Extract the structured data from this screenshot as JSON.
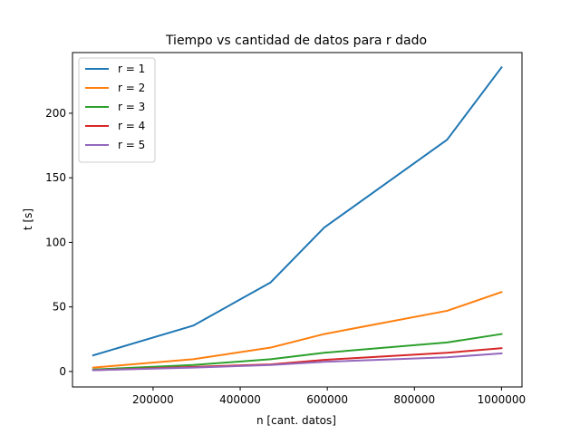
{
  "chart_data": {
    "type": "line",
    "title": "Tiempo vs cantidad de datos para r dado",
    "xlabel": "n [cant. datos]",
    "ylabel": "t [s]",
    "xlim": [
      15000,
      1047000
    ],
    "ylim": [
      -12,
      247
    ],
    "xticks": [
      200000,
      400000,
      600000,
      800000,
      1000000
    ],
    "xtick_labels": [
      "200000",
      "400000",
      "600000",
      "800000",
      "1000000"
    ],
    "yticks": [
      0,
      50,
      100,
      150,
      200
    ],
    "ytick_labels": [
      "0",
      "50",
      "100",
      "150",
      "200"
    ],
    "grid": false,
    "legend_position": "top-left",
    "x": [
      62500,
      292000,
      470000,
      593000,
      875000,
      1000000
    ],
    "series": [
      {
        "name": "r = 1",
        "color": "#1f77b4",
        "values": [
          12.5,
          35.5,
          69.0,
          111.5,
          179.5,
          235.5
        ]
      },
      {
        "name": "r = 2",
        "color": "#ff7f0e",
        "values": [
          3.0,
          9.5,
          18.5,
          29.0,
          47.0,
          61.5
        ]
      },
      {
        "name": "r = 3",
        "color": "#2ca02c",
        "values": [
          1.5,
          5.0,
          9.5,
          14.5,
          22.5,
          29.0
        ]
      },
      {
        "name": "r = 4",
        "color": "#d62728",
        "values": [
          1.0,
          3.5,
          5.5,
          9.0,
          14.5,
          18.0
        ]
      },
      {
        "name": "r = 5",
        "color": "#9467bd",
        "values": [
          1.0,
          3.0,
          5.0,
          7.5,
          11.0,
          14.0
        ]
      }
    ]
  }
}
